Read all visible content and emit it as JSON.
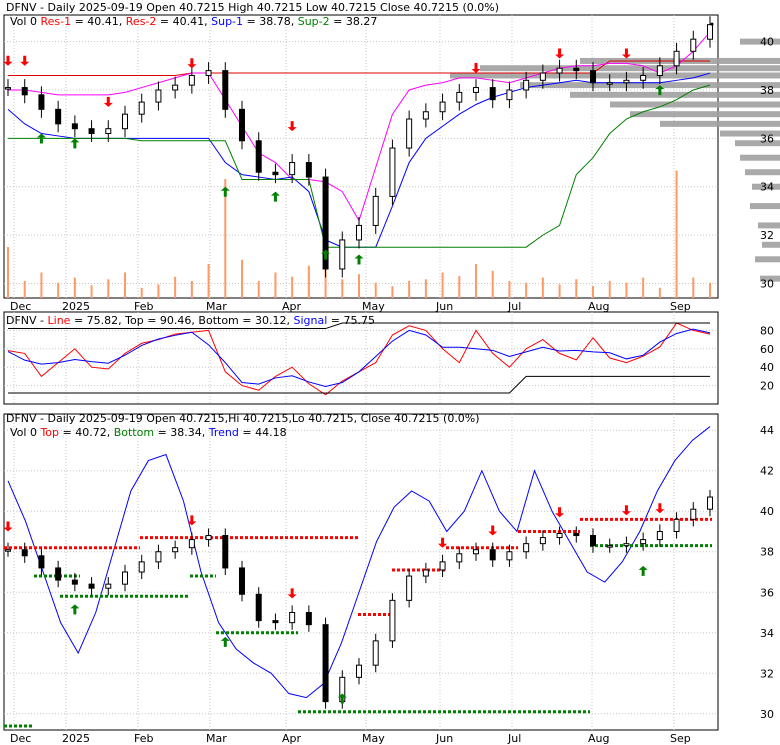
{
  "colors": {
    "black": "#000000",
    "red": "#ff0000",
    "blue": "#0000ff",
    "green": "#008000",
    "magenta": "#ff00ff",
    "darkred": "#cc0000",
    "volume": "#ff9966",
    "profile": "#a0a0a0",
    "res_line": "#dd0000",
    "sup_line": "#008000"
  },
  "panels": [
    {
      "id": "price",
      "header": {
        "line1": [
          {
            "text": "DFNV - Daily 2025-09-19 Open 40.7215  High 40.7215  Low 40.7215  Close 40.7215 (0.0%)",
            "color": "#000000"
          }
        ],
        "line2": [
          {
            "text": "Vol 0 ",
            "color": "#000000"
          },
          {
            "text": "Res-1",
            "color": "#ff0000"
          },
          {
            "text": " = 40.41, ",
            "color": "#000000"
          },
          {
            "text": "Res-2",
            "color": "#ff0000"
          },
          {
            "text": " = 40.41, ",
            "color": "#000000"
          },
          {
            "text": "Sup-1",
            "color": "#0000ff"
          },
          {
            "text": " = 38.78, ",
            "color": "#000000"
          },
          {
            "text": "Sup-2",
            "color": "#008000"
          },
          {
            "text": " = 38.27",
            "color": "#000000"
          }
        ]
      },
      "yticks": [
        "30",
        "32",
        "34",
        "36",
        "38",
        "40"
      ]
    },
    {
      "id": "stoch",
      "header": {
        "line1": [
          {
            "text": "DFNV - ",
            "color": "#000000"
          },
          {
            "text": "Line",
            "color": "#ff0000"
          },
          {
            "text": " = 75.82, ",
            "color": "#000000"
          },
          {
            "text": "Top",
            "color": "#000000"
          },
          {
            "text": " = 90.46, ",
            "color": "#000000"
          },
          {
            "text": "Bottom",
            "color": "#000000"
          },
          {
            "text": " = 30.12, ",
            "color": "#000000"
          },
          {
            "text": "Signal",
            "color": "#0000ff"
          },
          {
            "text": " = 75.75",
            "color": "#000000"
          }
        ]
      },
      "yticks": [
        "20",
        "40",
        "60",
        "80"
      ]
    },
    {
      "id": "trend",
      "header": {
        "line1": [
          {
            "text": "DFNV - Daily 2025-09-19 Open 40.7215,Hi 40.7215,Lo 40.7215, Close 40.7215 (0.0%)",
            "color": "#000000"
          }
        ],
        "line2": [
          {
            "text": "Vol 0 ",
            "color": "#000000"
          },
          {
            "text": "Top",
            "color": "#ff0000"
          },
          {
            "text": " = 40.72, ",
            "color": "#000000"
          },
          {
            "text": "Bottom",
            "color": "#008000"
          },
          {
            "text": " = 38.34, ",
            "color": "#000000"
          },
          {
            "text": "Trend",
            "color": "#0000ff"
          },
          {
            "text": " = 44.18",
            "color": "#000000"
          }
        ]
      },
      "yticks": [
        "30",
        "32",
        "34",
        "36",
        "38",
        "40",
        "42",
        "44"
      ]
    }
  ],
  "xaxis": [
    "Dec",
    "2025",
    "Feb",
    "Mar",
    "Apr",
    "May",
    "Jun",
    "Jul",
    "Aug",
    "Sep"
  ],
  "chart_data": [
    {
      "type": "candlestick",
      "ticker": "DFNV",
      "ylim": [
        29.4,
        41.1
      ],
      "close_series": [
        {
          "date": "2024-11-25",
          "close": 38.1
        },
        {
          "date": "2024-12-02",
          "close": 37.8
        },
        {
          "date": "2024-12-09",
          "close": 37.2
        },
        {
          "date": "2024-12-16",
          "close": 36.6
        },
        {
          "date": "2024-12-23",
          "close": 36.4
        },
        {
          "date": "2024-12-30",
          "close": 36.2
        },
        {
          "date": "2025-01-06",
          "close": 36.4
        },
        {
          "date": "2025-01-13",
          "close": 37.0
        },
        {
          "date": "2025-01-20",
          "close": 37.5
        },
        {
          "date": "2025-01-27",
          "close": 38.0
        },
        {
          "date": "2025-02-03",
          "close": 38.2
        },
        {
          "date": "2025-02-10",
          "close": 38.6
        },
        {
          "date": "2025-02-17",
          "close": 38.8
        },
        {
          "date": "2025-02-24",
          "close": 37.2
        },
        {
          "date": "2025-03-03",
          "close": 35.9
        },
        {
          "date": "2025-03-10",
          "close": 34.6
        },
        {
          "date": "2025-03-17",
          "close": 34.5
        },
        {
          "date": "2025-03-24",
          "close": 35.0
        },
        {
          "date": "2025-03-31",
          "close": 34.4
        },
        {
          "date": "2025-04-07",
          "close": 30.6
        },
        {
          "date": "2025-04-14",
          "close": 31.8
        },
        {
          "date": "2025-04-21",
          "close": 32.4
        },
        {
          "date": "2025-04-28",
          "close": 33.6
        },
        {
          "date": "2025-05-05",
          "close": 35.6
        },
        {
          "date": "2025-05-12",
          "close": 36.8
        },
        {
          "date": "2025-05-19",
          "close": 37.1
        },
        {
          "date": "2025-05-26",
          "close": 37.5
        },
        {
          "date": "2025-06-02",
          "close": 37.9
        },
        {
          "date": "2025-06-09",
          "close": 38.1
        },
        {
          "date": "2025-06-16",
          "close": 37.6
        },
        {
          "date": "2025-06-23",
          "close": 38.0
        },
        {
          "date": "2025-06-30",
          "close": 38.4
        },
        {
          "date": "2025-07-07",
          "close": 38.7
        },
        {
          "date": "2025-07-14",
          "close": 38.9
        },
        {
          "date": "2025-07-21",
          "close": 38.8
        },
        {
          "date": "2025-07-28",
          "close": 38.3
        },
        {
          "date": "2025-08-04",
          "close": 38.3
        },
        {
          "date": "2025-08-11",
          "close": 38.4
        },
        {
          "date": "2025-08-18",
          "close": 38.6
        },
        {
          "date": "2025-08-25",
          "close": 39.0
        },
        {
          "date": "2025-09-01",
          "close": 39.6
        },
        {
          "date": "2025-09-08",
          "close": 40.1
        },
        {
          "date": "2025-09-15",
          "close": 40.7
        }
      ],
      "series": [
        {
          "name": "Res-1",
          "value": 40.41
        },
        {
          "name": "Res-2",
          "value": 40.41
        },
        {
          "name": "Sup-1",
          "value": 38.78
        },
        {
          "name": "Sup-2",
          "value": 38.27
        }
      ],
      "last": {
        "date": "2025-09-19",
        "open": 40.7215,
        "high": 40.7215,
        "low": 40.7215,
        "close": 40.7215,
        "change_pct": 0.0,
        "volume": 0
      }
    },
    {
      "type": "line",
      "ylim": [
        0,
        100
      ],
      "series": [
        {
          "name": "Line",
          "last": 75.82
        },
        {
          "name": "Signal",
          "last": 75.75
        },
        {
          "name": "Top",
          "last": 90.46
        },
        {
          "name": "Bottom",
          "last": 30.12
        }
      ],
      "line_values": [
        58,
        55,
        30,
        45,
        60,
        40,
        38,
        55,
        66,
        70,
        76,
        78,
        80,
        35,
        20,
        15,
        30,
        40,
        22,
        10,
        25,
        35,
        45,
        75,
        85,
        80,
        60,
        45,
        80,
        55,
        40,
        60,
        70,
        55,
        48,
        72,
        50,
        45,
        52,
        62,
        88,
        80,
        76
      ]
    },
    {
      "type": "line",
      "ylim": [
        29.2,
        44.8
      ],
      "series": [
        {
          "name": "Top",
          "last": 40.72
        },
        {
          "name": "Bottom",
          "last": 38.34
        },
        {
          "name": "Trend",
          "last": 44.18
        }
      ],
      "trend_values": [
        41.5,
        39.5,
        37.0,
        34.5,
        33.0,
        35.0,
        38.0,
        41.0,
        42.5,
        42.8,
        40.5,
        37.0,
        34.5,
        33.2,
        32.5,
        32.0,
        31.0,
        30.8,
        31.5,
        33.5,
        36.0,
        38.5,
        40.2,
        41.0,
        40.5,
        39.0,
        40.0,
        42.0,
        40.0,
        39.0,
        42.0,
        40.0,
        38.5,
        37.0,
        36.5,
        37.5,
        39.0,
        41.0,
        42.5,
        43.5,
        44.18
      ]
    }
  ]
}
